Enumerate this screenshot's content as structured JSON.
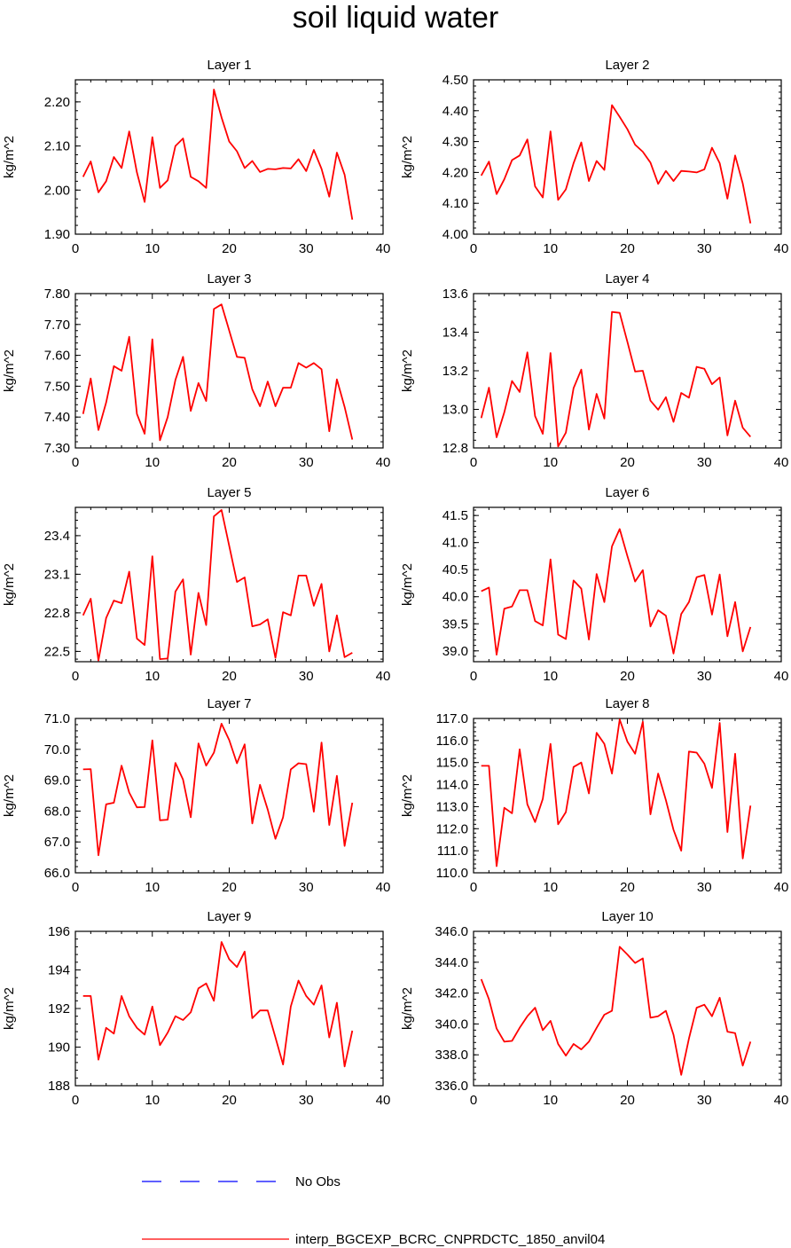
{
  "title": "soil liquid water",
  "legend": {
    "entries": [
      {
        "label": "No Obs",
        "color": "#0000ff",
        "style": "dashed"
      },
      {
        "label": "interp_BGCEXP_BCRC_CNPRDCTC_1850_anvil04",
        "color": "#ff0000",
        "style": "solid"
      }
    ]
  },
  "chart_data": [
    {
      "type": "line",
      "title": "Layer 1",
      "ylabel": "kg/m^2",
      "xlim": [
        0,
        40
      ],
      "ylim": [
        1.9,
        2.25
      ],
      "xticks": [
        0,
        10,
        20,
        30,
        40
      ],
      "yticks": [
        1.9,
        2.0,
        2.1,
        2.2
      ],
      "ytick_labels": [
        "1.90",
        "2.00",
        "2.10",
        "2.20"
      ],
      "series": [
        {
          "color": "#ff0000",
          "x": [
            1,
            2,
            3,
            4,
            5,
            6,
            7,
            8,
            9,
            10,
            11,
            12,
            13,
            14,
            15,
            16,
            17,
            18,
            19,
            20,
            21,
            22,
            23,
            24,
            25,
            26,
            27,
            28,
            29,
            30,
            31,
            32,
            33,
            34,
            35,
            36
          ],
          "y": [
            2.03,
            2.065,
            1.995,
            2.02,
            2.075,
            2.05,
            2.133,
            2.04,
            1.973,
            2.12,
            2.005,
            2.022,
            2.1,
            2.117,
            2.03,
            2.02,
            2.005,
            2.228,
            2.165,
            2.11,
            2.088,
            2.05,
            2.066,
            2.041,
            2.048,
            2.047,
            2.05,
            2.049,
            2.07,
            2.043,
            2.091,
            2.048,
            1.985,
            2.085,
            2.035,
            1.933
          ]
        }
      ]
    },
    {
      "type": "line",
      "title": "Layer 2",
      "ylabel": "kg/m^2",
      "xlim": [
        0,
        40
      ],
      "ylim": [
        4.0,
        4.5
      ],
      "xticks": [
        0,
        10,
        20,
        30,
        40
      ],
      "yticks": [
        4.0,
        4.1,
        4.2,
        4.3,
        4.4,
        4.5
      ],
      "ytick_labels": [
        "4.00",
        "4.10",
        "4.20",
        "4.30",
        "4.40",
        "4.50"
      ],
      "series": [
        {
          "color": "#ff0000",
          "x": [
            1,
            2,
            3,
            4,
            5,
            6,
            7,
            8,
            9,
            10,
            11,
            12,
            13,
            14,
            15,
            16,
            17,
            18,
            19,
            20,
            21,
            22,
            23,
            24,
            25,
            26,
            27,
            28,
            29,
            30,
            31,
            32,
            33,
            34,
            35,
            36
          ],
          "y": [
            4.19,
            4.235,
            4.13,
            4.178,
            4.24,
            4.255,
            4.307,
            4.155,
            4.119,
            4.333,
            4.111,
            4.145,
            4.23,
            4.297,
            4.172,
            4.237,
            4.208,
            4.418,
            4.38,
            4.34,
            4.29,
            4.267,
            4.232,
            4.163,
            4.205,
            4.172,
            4.205,
            4.203,
            4.2,
            4.21,
            4.28,
            4.23,
            4.115,
            4.255,
            4.164,
            4.035
          ]
        }
      ]
    },
    {
      "type": "line",
      "title": "Layer 3",
      "ylabel": "kg/m^2",
      "xlim": [
        0,
        40
      ],
      "ylim": [
        7.3,
        7.8
      ],
      "xticks": [
        0,
        10,
        20,
        30,
        40
      ],
      "yticks": [
        7.3,
        7.4,
        7.5,
        7.6,
        7.7,
        7.8
      ],
      "ytick_labels": [
        "7.30",
        "7.40",
        "7.50",
        "7.60",
        "7.70",
        "7.80"
      ],
      "series": [
        {
          "color": "#ff0000",
          "x": [
            1,
            2,
            3,
            4,
            5,
            6,
            7,
            8,
            9,
            10,
            11,
            12,
            13,
            14,
            15,
            16,
            17,
            18,
            19,
            20,
            21,
            22,
            23,
            24,
            25,
            26,
            27,
            28,
            29,
            30,
            31,
            32,
            33,
            34,
            35,
            36
          ],
          "y": [
            7.41,
            7.525,
            7.358,
            7.447,
            7.565,
            7.55,
            7.66,
            7.41,
            7.346,
            7.652,
            7.325,
            7.4,
            7.52,
            7.595,
            7.42,
            7.51,
            7.452,
            7.75,
            7.765,
            7.68,
            7.595,
            7.592,
            7.49,
            7.435,
            7.515,
            7.435,
            7.495,
            7.495,
            7.575,
            7.56,
            7.575,
            7.555,
            7.354,
            7.522,
            7.433,
            7.327
          ]
        }
      ]
    },
    {
      "type": "line",
      "title": "Layer 4",
      "ylabel": "kg/m^2",
      "xlim": [
        0,
        40
      ],
      "ylim": [
        12.8,
        13.6
      ],
      "xticks": [
        0,
        10,
        20,
        30,
        40
      ],
      "yticks": [
        12.8,
        13.0,
        13.2,
        13.4,
        13.6
      ],
      "ytick_labels": [
        "12.8",
        "13.0",
        "13.2",
        "13.4",
        "13.6"
      ],
      "series": [
        {
          "color": "#ff0000",
          "x": [
            1,
            2,
            3,
            4,
            5,
            6,
            7,
            8,
            9,
            10,
            11,
            12,
            13,
            14,
            15,
            16,
            17,
            18,
            19,
            20,
            21,
            22,
            23,
            24,
            25,
            26,
            27,
            28,
            29,
            30,
            31,
            32,
            33,
            34,
            35,
            36
          ],
          "y": [
            12.955,
            13.112,
            12.855,
            12.985,
            13.147,
            13.09,
            13.295,
            12.965,
            12.873,
            13.292,
            12.808,
            12.879,
            13.11,
            13.206,
            12.895,
            13.08,
            12.952,
            13.505,
            13.5,
            13.35,
            13.196,
            13.2,
            13.045,
            12.998,
            13.063,
            12.935,
            13.085,
            13.06,
            13.22,
            13.21,
            13.13,
            13.165,
            12.865,
            13.045,
            12.905,
            12.858
          ]
        }
      ]
    },
    {
      "type": "line",
      "title": "Layer 5",
      "ylabel": "kg/m^2",
      "xlim": [
        0,
        40
      ],
      "ylim": [
        22.42,
        23.62
      ],
      "xticks": [
        0,
        10,
        20,
        30,
        40
      ],
      "yticks": [
        22.5,
        22.8,
        23.1,
        23.4
      ],
      "ytick_labels": [
        "22.5",
        "22.8",
        "23.1",
        "23.4"
      ],
      "series": [
        {
          "color": "#ff0000",
          "x": [
            1,
            2,
            3,
            4,
            5,
            6,
            7,
            8,
            9,
            10,
            11,
            12,
            13,
            14,
            15,
            16,
            17,
            18,
            19,
            20,
            21,
            22,
            23,
            24,
            25,
            26,
            27,
            28,
            29,
            30,
            31,
            32,
            33,
            34,
            35,
            36
          ],
          "y": [
            22.78,
            22.91,
            22.43,
            22.76,
            22.895,
            22.875,
            23.12,
            22.6,
            22.55,
            23.24,
            22.44,
            22.445,
            22.965,
            23.06,
            22.475,
            22.955,
            22.705,
            23.55,
            23.6,
            23.32,
            23.04,
            23.075,
            22.695,
            22.71,
            22.75,
            22.45,
            22.805,
            22.78,
            23.09,
            23.09,
            22.855,
            23.025,
            22.5,
            22.78,
            22.455,
            22.49
          ]
        }
      ]
    },
    {
      "type": "line",
      "title": "Layer 6",
      "ylabel": "kg/m^2",
      "xlim": [
        0,
        40
      ],
      "ylim": [
        38.8,
        41.65
      ],
      "xticks": [
        0,
        10,
        20,
        30,
        40
      ],
      "yticks": [
        39.0,
        39.5,
        40.0,
        40.5,
        41.0,
        41.5
      ],
      "ytick_labels": [
        "39.0",
        "39.5",
        "40.0",
        "40.5",
        "41.0",
        "41.5"
      ],
      "series": [
        {
          "color": "#ff0000",
          "x": [
            1,
            2,
            3,
            4,
            5,
            6,
            7,
            8,
            9,
            10,
            11,
            12,
            13,
            14,
            15,
            16,
            17,
            18,
            19,
            20,
            21,
            22,
            23,
            24,
            25,
            26,
            27,
            28,
            29,
            30,
            31,
            32,
            33,
            34,
            35,
            36
          ],
          "y": [
            40.1,
            40.17,
            38.93,
            39.78,
            39.82,
            40.12,
            40.12,
            39.55,
            39.47,
            40.69,
            39.3,
            39.22,
            40.3,
            40.15,
            39.21,
            40.42,
            39.9,
            40.93,
            41.25,
            40.75,
            40.28,
            40.49,
            39.45,
            39.75,
            39.65,
            38.95,
            39.68,
            39.9,
            40.36,
            40.4,
            39.67,
            40.41,
            39.27,
            39.9,
            38.99,
            39.44
          ]
        }
      ]
    },
    {
      "type": "line",
      "title": "Layer 7",
      "ylabel": "kg/m^2",
      "xlim": [
        0,
        40
      ],
      "ylim": [
        66.0,
        71.0
      ],
      "xticks": [
        0,
        10,
        20,
        30,
        40
      ],
      "yticks": [
        66.0,
        67.0,
        68.0,
        69.0,
        70.0,
        71.0
      ],
      "ytick_labels": [
        "66.0",
        "67.0",
        "68.0",
        "69.0",
        "70.0",
        "71.0"
      ],
      "series": [
        {
          "color": "#ff0000",
          "x": [
            1,
            2,
            3,
            4,
            5,
            6,
            7,
            8,
            9,
            10,
            11,
            12,
            13,
            14,
            15,
            16,
            17,
            18,
            19,
            20,
            21,
            22,
            23,
            24,
            25,
            26,
            27,
            28,
            29,
            30,
            31,
            32,
            33,
            34,
            35,
            36
          ],
          "y": [
            69.35,
            69.36,
            66.57,
            68.22,
            68.27,
            69.47,
            68.6,
            68.12,
            68.13,
            70.29,
            67.7,
            67.72,
            69.56,
            69.02,
            67.8,
            70.19,
            69.47,
            69.89,
            70.83,
            70.3,
            69.55,
            70.16,
            67.6,
            68.85,
            68.05,
            67.1,
            67.8,
            69.35,
            69.55,
            69.52,
            67.98,
            70.22,
            67.55,
            69.14,
            66.87,
            68.27
          ]
        }
      ]
    },
    {
      "type": "line",
      "title": "Layer 8",
      "ylabel": "kg/m^2",
      "xlim": [
        0,
        40
      ],
      "ylim": [
        110.0,
        117.0
      ],
      "xticks": [
        0,
        10,
        20,
        30,
        40
      ],
      "yticks": [
        110.0,
        111.0,
        112.0,
        113.0,
        114.0,
        115.0,
        116.0,
        117.0
      ],
      "ytick_labels": [
        "110.0",
        "111.0",
        "112.0",
        "113.0",
        "114.0",
        "115.0",
        "116.0",
        "117.0"
      ],
      "series": [
        {
          "color": "#ff0000",
          "x": [
            1,
            2,
            3,
            4,
            5,
            6,
            7,
            8,
            9,
            10,
            11,
            12,
            13,
            14,
            15,
            16,
            17,
            18,
            19,
            20,
            21,
            22,
            23,
            24,
            25,
            26,
            27,
            28,
            29,
            30,
            31,
            32,
            33,
            34,
            35,
            36
          ],
          "y": [
            114.85,
            114.85,
            110.3,
            112.95,
            112.7,
            115.6,
            113.1,
            112.3,
            113.35,
            115.85,
            112.2,
            112.75,
            114.8,
            115.0,
            113.6,
            116.35,
            115.85,
            114.5,
            116.95,
            115.95,
            115.4,
            116.85,
            112.65,
            114.5,
            113.3,
            111.95,
            111.0,
            115.5,
            115.45,
            114.95,
            113.85,
            116.8,
            111.85,
            115.4,
            110.65,
            113.05
          ]
        }
      ]
    },
    {
      "type": "line",
      "title": "Layer 9",
      "ylabel": "kg/m^2",
      "xlim": [
        0,
        40
      ],
      "ylim": [
        188,
        196
      ],
      "xticks": [
        0,
        10,
        20,
        30,
        40
      ],
      "yticks": [
        188,
        190,
        192,
        194,
        196
      ],
      "ytick_labels": [
        "188",
        "190",
        "192",
        "194",
        "196"
      ],
      "series": [
        {
          "color": "#ff0000",
          "x": [
            1,
            2,
            3,
            4,
            5,
            6,
            7,
            8,
            9,
            10,
            11,
            12,
            13,
            14,
            15,
            16,
            17,
            18,
            19,
            20,
            21,
            22,
            23,
            24,
            25,
            26,
            27,
            28,
            29,
            30,
            31,
            32,
            33,
            34,
            35,
            36
          ],
          "y": [
            192.65,
            192.65,
            189.35,
            191.0,
            190.7,
            192.65,
            191.6,
            191.0,
            190.65,
            192.1,
            190.1,
            190.75,
            191.6,
            191.4,
            191.8,
            193.05,
            193.3,
            192.4,
            195.45,
            194.55,
            194.15,
            194.95,
            191.5,
            191.9,
            191.9,
            190.5,
            189.1,
            192.1,
            193.45,
            192.65,
            192.2,
            193.2,
            190.5,
            192.3,
            189.0,
            190.85
          ]
        }
      ]
    },
    {
      "type": "line",
      "title": "Layer 10",
      "ylabel": "kg/m^2",
      "xlim": [
        0,
        40
      ],
      "ylim": [
        336.0,
        346.0
      ],
      "xticks": [
        0,
        10,
        20,
        30,
        40
      ],
      "yticks": [
        336.0,
        338.0,
        340.0,
        342.0,
        344.0,
        346.0
      ],
      "ytick_labels": [
        "336.0",
        "338.0",
        "340.0",
        "342.0",
        "344.0",
        "346.0"
      ],
      "series": [
        {
          "color": "#ff0000",
          "x": [
            1,
            2,
            3,
            4,
            5,
            6,
            7,
            8,
            9,
            10,
            11,
            12,
            13,
            14,
            15,
            16,
            17,
            18,
            19,
            20,
            21,
            22,
            23,
            24,
            25,
            26,
            27,
            28,
            29,
            30,
            31,
            32,
            33,
            34,
            35,
            36
          ],
          "y": [
            342.9,
            341.6,
            339.7,
            338.85,
            338.9,
            339.75,
            340.5,
            341.05,
            339.6,
            340.2,
            338.7,
            337.95,
            338.7,
            338.35,
            338.85,
            339.75,
            340.6,
            340.85,
            345.0,
            344.5,
            343.95,
            344.25,
            340.4,
            340.5,
            340.85,
            339.3,
            336.7,
            339.05,
            341.05,
            341.25,
            340.5,
            341.7,
            339.5,
            339.4,
            337.3,
            338.85
          ]
        }
      ]
    }
  ]
}
